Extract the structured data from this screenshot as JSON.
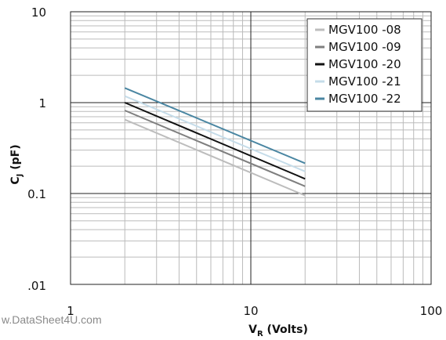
{
  "chart_data": {
    "type": "line",
    "x_scale": "log",
    "y_scale": "log",
    "xlim": [
      1,
      100
    ],
    "ylim": [
      0.01,
      10
    ],
    "x_ticks": [
      "1",
      "10",
      "100"
    ],
    "y_ticks": [
      "10",
      "1",
      "0.1",
      ".01"
    ],
    "xlabel_main": "V",
    "xlabel_sub": "R",
    "xlabel_rest": " (Volts)",
    "ylabel_main": "C",
    "ylabel_sub": "J",
    "ylabel_rest": " (pF)",
    "grid": true,
    "legend_position": "top-right",
    "series": [
      {
        "name": "MGV100 -08",
        "color": "#bdbdbd",
        "x": [
          2,
          20
        ],
        "y": [
          0.65,
          0.095
        ]
      },
      {
        "name": "MGV100 -09",
        "color": "#7f7f7f",
        "x": [
          2,
          20
        ],
        "y": [
          0.82,
          0.12
        ]
      },
      {
        "name": "MGV100 -20",
        "color": "#111111",
        "x": [
          2,
          20
        ],
        "y": [
          1.0,
          0.145
        ]
      },
      {
        "name": "MGV100 -21",
        "color": "#c5dce9",
        "x": [
          2,
          20
        ],
        "y": [
          1.18,
          0.175
        ]
      },
      {
        "name": "MGV100 -22",
        "color": "#4a86a2",
        "x": [
          2,
          20
        ],
        "y": [
          1.45,
          0.215
        ]
      }
    ]
  },
  "watermark": "w.DataSheet4U.com"
}
